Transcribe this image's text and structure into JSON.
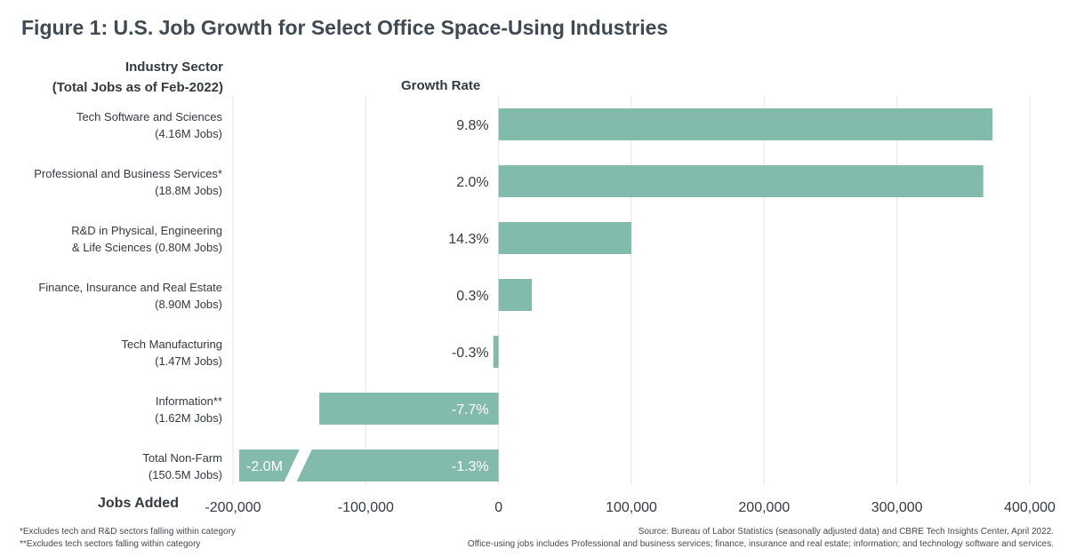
{
  "title": "Figure 1: U.S. Job Growth for Select Office Space-Using Industries",
  "headers": {
    "sector_line1": "Industry Sector",
    "sector_line2": "(Total Jobs as of Feb-2022)",
    "growth_rate": "Growth Rate",
    "jobs_added": "Jobs Added"
  },
  "notes": {
    "left_line1": "*Excludes tech and R&D sectors falling within category",
    "left_line2": "**Excludes tech sectors falling within category",
    "right_line1": "Source:  Bureau of Labor Statistics (seasonally adjusted data) and CBRE Tech Insights Center, April 2022.",
    "right_line2": "Office-using jobs includes Professional and business services; finance, insurance and real estate; information; and technology software and services."
  },
  "colors": {
    "bar": "#82bbab",
    "grid": "#e3e3e3",
    "text": "#3a4149"
  },
  "chart_data": {
    "type": "bar",
    "orientation": "horizontal",
    "xlabel": "Jobs Added",
    "xlim": [
      -200000,
      400000
    ],
    "x_ticks": [
      -200000,
      -100000,
      0,
      100000,
      200000,
      300000,
      400000
    ],
    "x_tick_labels": [
      "-200,000",
      "-100,000",
      "0",
      "100,000",
      "200,000",
      "300,000",
      "400,000"
    ],
    "grid": true,
    "categories": [
      [
        "Tech Software and Sciences",
        "(4.16M Jobs)"
      ],
      [
        "Professional and Business Services*",
        "(18.8M Jobs)"
      ],
      [
        "R&D in Physical, Engineering",
        "& Life Sciences (0.80M Jobs)"
      ],
      [
        "Finance, Insurance and Real Estate",
        "(8.90M Jobs)"
      ],
      [
        "Tech Manufacturing",
        "(1.47M Jobs)"
      ],
      [
        "Information**",
        "(1.62M Jobs)"
      ],
      [
        "Total Non-Farm",
        "(150.5M Jobs)"
      ]
    ],
    "values": [
      372000,
      365000,
      100000,
      25000,
      -4000,
      -135000,
      -2000000
    ],
    "growth_rates": [
      "9.8%",
      "2.0%",
      "14.3%",
      "0.3%",
      "-0.3%",
      "-7.7%",
      "-1.3%"
    ],
    "axis_break": {
      "category_index": 6,
      "value_label": "-2.0M"
    }
  }
}
